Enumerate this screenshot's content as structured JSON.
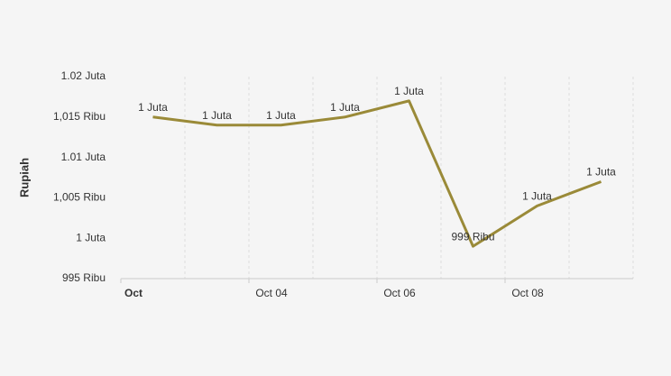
{
  "chart_data": {
    "type": "line",
    "y_label": "Rupiah",
    "x": [
      "Oct 02",
      "Oct 03",
      "Oct 04",
      "Oct 05",
      "Oct 06",
      "Oct 07",
      "Oct 08",
      "Oct 09"
    ],
    "series": [
      {
        "name": "Rupiah",
        "color": "#9a8a38",
        "values": [
          1015000,
          1014000,
          1014000,
          1015000,
          1017000,
          999000,
          1004000,
          1007000
        ],
        "value_labels": [
          "1 Juta",
          "1 Juta",
          "1 Juta",
          "1 Juta",
          "1 Juta",
          "999 Ribu",
          "1 Juta",
          "1 Juta"
        ]
      }
    ],
    "xlim": [
      "Oct 02",
      "Oct 10"
    ],
    "xticks": [
      {
        "value": "Oct 02",
        "label": "Oct"
      },
      "Oct 04",
      "Oct 06",
      "Oct 08"
    ],
    "ylim": [
      995000,
      1020000
    ],
    "yticks": [
      {
        "value": 995000,
        "label": "995 Ribu"
      },
      {
        "value": 1000000,
        "label": "1 Juta"
      },
      {
        "value": 1005000,
        "label": "1,005 Ribu"
      },
      {
        "value": 1010000,
        "label": "1.01 Juta"
      },
      {
        "value": 1015000,
        "label": "1,015 Ribu"
      },
      {
        "value": 1020000,
        "label": "1.02 Juta"
      }
    ],
    "grid": "x"
  }
}
